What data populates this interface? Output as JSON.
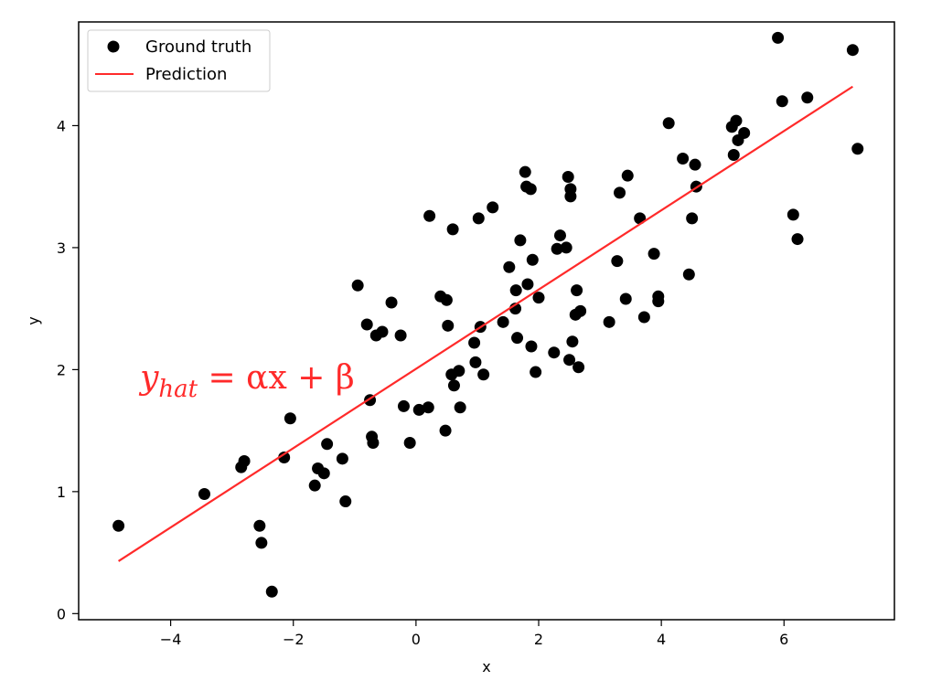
{
  "chart_data": {
    "type": "scatter",
    "title": "",
    "xlabel": "x",
    "ylabel": "y",
    "xlim": [
      -5.5,
      7.8
    ],
    "ylim": [
      -0.05,
      4.85
    ],
    "xticks": [
      -4,
      -2,
      0,
      2,
      4,
      6
    ],
    "yticks": [
      0,
      1,
      2,
      3,
      4
    ],
    "xtick_labels": [
      "−4",
      "−2",
      "0",
      "2",
      "4",
      "6"
    ],
    "ytick_labels": [
      "0",
      "1",
      "2",
      "3",
      "4"
    ],
    "grid": false,
    "legend_position": "top-left",
    "annotation": {
      "text_main": "y",
      "text_sub": "hat",
      "text_rest": " = αx + β",
      "x": -4.5,
      "y": 1.92,
      "color": "#ff2a2a"
    },
    "series": [
      {
        "name": "Ground truth",
        "kind": "scatter",
        "color": "#000000",
        "x": [
          -4.85,
          -3.45,
          -2.85,
          -2.8,
          -2.55,
          -2.52,
          -2.35,
          -2.15,
          -2.05,
          -1.65,
          -1.6,
          -1.5,
          -1.45,
          -1.2,
          -1.15,
          -0.95,
          -0.8,
          -0.75,
          -0.72,
          -0.7,
          -0.65,
          -0.55,
          -0.4,
          -0.25,
          -0.2,
          -0.1,
          0.05,
          0.2,
          0.22,
          0.4,
          0.48,
          0.5,
          0.52,
          0.58,
          0.6,
          0.62,
          0.7,
          0.72,
          0.95,
          0.97,
          1.02,
          1.05,
          1.1,
          1.25,
          1.42,
          1.52,
          1.62,
          1.63,
          1.65,
          1.7,
          1.78,
          1.8,
          1.82,
          1.87,
          1.88,
          1.9,
          1.95,
          2.0,
          2.25,
          2.3,
          2.35,
          2.45,
          2.48,
          2.5,
          2.52,
          2.52,
          2.55,
          2.6,
          2.62,
          2.65,
          2.68,
          3.15,
          3.28,
          3.32,
          3.42,
          3.45,
          3.65,
          3.72,
          3.88,
          3.95,
          3.95,
          4.12,
          4.35,
          4.45,
          4.5,
          4.55,
          4.57,
          5.15,
          5.18,
          5.22,
          5.25,
          5.35,
          5.9,
          5.97,
          6.15,
          6.22,
          6.38,
          7.12,
          7.2
        ],
        "y": [
          0.72,
          0.98,
          1.2,
          1.25,
          0.72,
          0.58,
          0.18,
          1.28,
          1.6,
          1.05,
          1.19,
          1.15,
          1.39,
          1.27,
          0.92,
          2.69,
          2.37,
          1.75,
          1.45,
          1.4,
          2.28,
          2.31,
          2.55,
          2.28,
          1.7,
          1.4,
          1.67,
          1.69,
          3.26,
          2.6,
          1.5,
          2.57,
          2.36,
          1.96,
          3.15,
          1.87,
          1.99,
          1.69,
          2.22,
          2.06,
          3.24,
          2.35,
          1.96,
          3.33,
          2.39,
          2.84,
          2.5,
          2.65,
          2.26,
          3.06,
          3.62,
          3.5,
          2.7,
          3.48,
          2.19,
          2.9,
          1.98,
          2.59,
          2.14,
          2.99,
          3.1,
          3.0,
          3.58,
          2.08,
          3.48,
          3.42,
          2.23,
          2.45,
          2.65,
          2.02,
          2.48,
          2.39,
          2.89,
          3.45,
          2.58,
          3.59,
          3.24,
          2.43,
          2.95,
          2.6,
          2.56,
          4.02,
          3.73,
          2.78,
          3.24,
          3.68,
          3.5,
          3.99,
          3.76,
          4.04,
          3.88,
          3.94,
          4.72,
          4.2,
          3.27,
          3.07,
          4.23,
          4.62,
          3.81
        ]
      },
      {
        "name": "Prediction",
        "kind": "line",
        "color": "#ff2a2a",
        "x": [
          -4.85,
          7.12
        ],
        "y": [
          0.43,
          4.32
        ]
      }
    ]
  }
}
